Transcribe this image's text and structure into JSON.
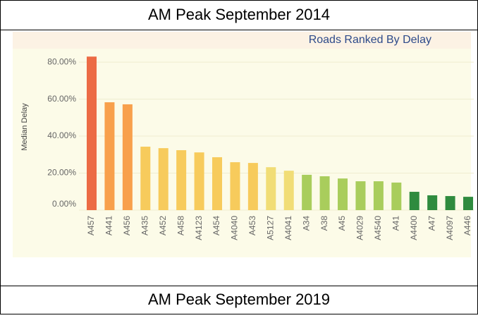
{
  "header": {
    "title": "AM Peak September 2014"
  },
  "footer": {
    "title": "AM Peak September 2019"
  },
  "chart_data": {
    "type": "bar",
    "title": "Roads Ranked By Delay",
    "y_label": "Median Delay",
    "categories": [
      "A457",
      "A441",
      "A456",
      "A435",
      "A452",
      "A458",
      "A4123",
      "A454",
      "A4040",
      "A453",
      "A5127",
      "A4041",
      "A34",
      "A38",
      "A45",
      "A4029",
      "A4540",
      "A41",
      "A4400",
      "A47",
      "A4097",
      "A446"
    ],
    "values": [
      83,
      58.3,
      57.2,
      34.3,
      33.5,
      32.4,
      31.2,
      28.6,
      25.9,
      25.5,
      23.2,
      21.3,
      19.1,
      18.3,
      17.1,
      15.6,
      15.6,
      14.9,
      9.9,
      8.0,
      7.6,
      7.2
    ],
    "colors": [
      "#ec6b45",
      "#f8a04c",
      "#f8a04c",
      "#f7cb5c",
      "#f7cb5c",
      "#f7cb5c",
      "#f7cb5c",
      "#f7cb5c",
      "#f7cb5c",
      "#f7cb5c",
      "#f1dd76",
      "#f1dd76",
      "#a9cd5c",
      "#a9cd5c",
      "#a9cd5c",
      "#a9cd5c",
      "#a9cd5c",
      "#a9cd5c",
      "#2f8b3f",
      "#2f8b3f",
      "#2f8b3f",
      "#2f8b3f"
    ],
    "ylim": [
      0,
      85
    ],
    "yticks": [
      {
        "value": 0,
        "label": "0.00%"
      },
      {
        "value": 20,
        "label": "20.00%"
      },
      {
        "value": 40,
        "label": "40.00%"
      },
      {
        "value": 60,
        "label": "60.00%"
      },
      {
        "value": 80,
        "label": "80.00%"
      }
    ],
    "grid": true
  }
}
